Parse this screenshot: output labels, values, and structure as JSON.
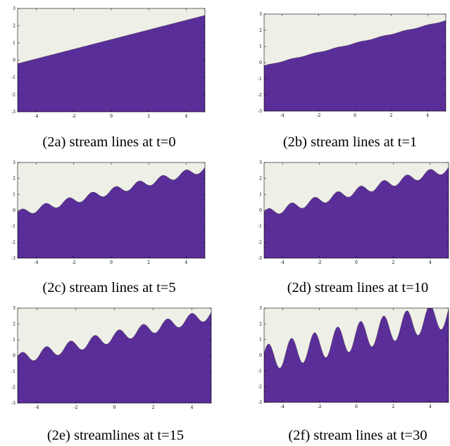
{
  "chart_data": [
    {
      "type": "area",
      "caption": "(2a) stream lines at t=0",
      "xlim": [
        -5,
        5
      ],
      "ylim": [
        -3,
        3
      ],
      "xticks": [
        "-4",
        "-2",
        "0",
        "2",
        "4"
      ],
      "yticks": [
        "3",
        "2",
        "1",
        "0",
        "-1",
        "-2",
        "-3"
      ],
      "amplitude": 0.0,
      "amplitude_growth": 0.0,
      "contour_offsets": [
        0.0,
        0.6,
        1.0,
        1.3,
        1.55,
        1.8
      ],
      "slope": 0.28,
      "intercept": 0.85,
      "grid": false
    },
    {
      "type": "area",
      "caption": "(2b) stream lines at t=1",
      "xlim": [
        -5,
        5
      ],
      "ylim": [
        -3,
        3
      ],
      "xticks": [
        "-4",
        "-2",
        "0",
        "2",
        "4"
      ],
      "yticks": [
        "3",
        "2",
        "1",
        "0",
        "-1",
        "-2",
        "-3"
      ],
      "amplitude": 0.02,
      "amplitude_growth": 0.02,
      "contour_offsets": [
        0.0,
        0.6,
        1.0,
        1.3,
        1.55,
        1.8
      ],
      "slope": 0.28,
      "intercept": 0.85,
      "grid": false
    },
    {
      "type": "area",
      "caption": "(2c) stream lines at t=5",
      "xlim": [
        -5,
        5
      ],
      "ylim": [
        -3,
        3
      ],
      "xticks": [
        "-4",
        "-2",
        "0",
        "2",
        "4"
      ],
      "yticks": [
        "3",
        "2",
        "1",
        "0",
        "-1",
        "-2",
        "-3"
      ],
      "amplitude": 0.22,
      "amplitude_growth": 0.04,
      "contour_offsets": [
        0.0,
        0.6,
        1.0,
        1.3,
        1.55,
        1.8
      ],
      "slope": 0.28,
      "intercept": 0.85,
      "grid": false
    },
    {
      "type": "area",
      "caption": "(2d) stream lines at t=10",
      "xlim": [
        -5,
        5
      ],
      "ylim": [
        -3,
        3
      ],
      "xticks": [
        "-4",
        "-2",
        "0",
        "2",
        "4"
      ],
      "yticks": [
        "3",
        "2",
        "1",
        "0",
        "-1",
        "-2",
        "-3"
      ],
      "amplitude": 0.25,
      "amplitude_growth": 0.04,
      "contour_offsets": [
        0.0,
        0.6,
        1.0,
        1.3,
        1.55,
        1.8
      ],
      "slope": 0.28,
      "intercept": 0.85,
      "grid": false
    },
    {
      "type": "area",
      "caption": "(2e) streamlines at t=15",
      "xlim": [
        -5,
        5
      ],
      "ylim": [
        -3,
        3
      ],
      "xticks": [
        "-4",
        "-2",
        "0",
        "2",
        "4"
      ],
      "yticks": [
        "3",
        "2",
        "1",
        "0",
        "-1",
        "-2",
        "-3"
      ],
      "amplitude": 0.35,
      "amplitude_growth": 0.05,
      "contour_offsets": [
        0.0,
        0.6,
        1.0,
        1.3,
        1.55,
        1.8
      ],
      "slope": 0.28,
      "intercept": 0.85,
      "grid": false
    },
    {
      "type": "area",
      "caption": "(2f) stream lines at t=30",
      "xlim": [
        -5,
        5
      ],
      "ylim": [
        -3,
        3
      ],
      "xticks": [
        "-4",
        "-2",
        "0",
        "2",
        "4"
      ],
      "yticks": [
        "3",
        "2",
        "1",
        "0",
        "-1",
        "-2",
        "-3"
      ],
      "amplitude": 0.85,
      "amplitude_growth": 0.06,
      "contour_offsets": [
        0.0,
        0.6,
        1.0,
        1.3,
        1.55,
        1.8
      ],
      "slope": 0.28,
      "intercept": 0.85,
      "grid": false
    }
  ],
  "colors": {
    "band_top": "#5a2e98",
    "bands": [
      "#6a4bb4",
      "#8774d0",
      "#a7a2e0",
      "#c3c8e8",
      "#dde5ee",
      "#eeefe6"
    ],
    "contour_line": "#3a3a3a",
    "axis": "#000000"
  }
}
